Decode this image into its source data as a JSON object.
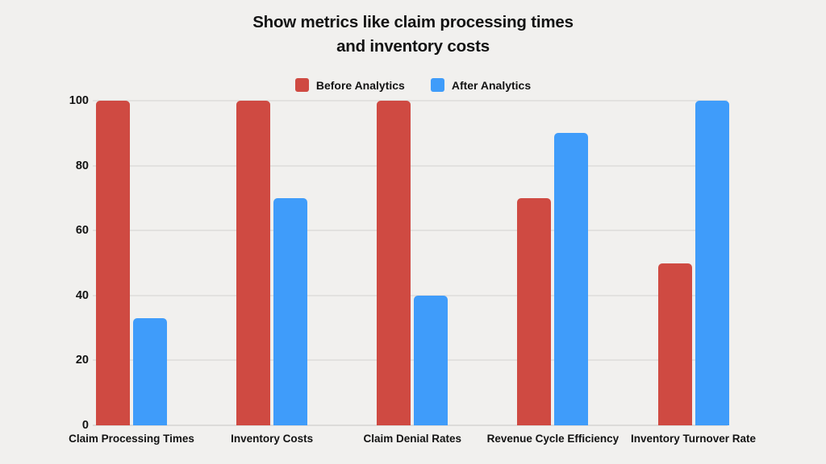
{
  "title": {
    "line1": "Show metrics like claim processing times",
    "line2": "and inventory costs"
  },
  "legend": [
    {
      "label": "Before Analytics",
      "color": "#cf4a42"
    },
    {
      "label": "After Analytics",
      "color": "#3f9cfa"
    }
  ],
  "colors": {
    "background": "#f1f0ee",
    "gridline": "#e2e1df",
    "baseline": "#dcdbd9",
    "text": "#131313"
  },
  "chart_data": {
    "type": "bar",
    "title": "Show metrics like claim processing times and inventory costs",
    "categories": [
      "Claim Processing Times",
      "Inventory Costs",
      "Claim Denial Rates",
      "Revenue Cycle Efficiency",
      "Inventory Turnover Rate"
    ],
    "series": [
      {
        "name": "Before Analytics",
        "color": "#cf4a42",
        "values": [
          100,
          100,
          100,
          70,
          50
        ]
      },
      {
        "name": "After Analytics",
        "color": "#3f9cfa",
        "values": [
          33,
          70,
          40,
          90,
          100
        ]
      }
    ],
    "xlabel": "",
    "ylabel": "",
    "ylim": [
      0,
      100
    ],
    "yticks": [
      0,
      20,
      40,
      60,
      80,
      100
    ],
    "grid": true,
    "legend_position": "top"
  }
}
